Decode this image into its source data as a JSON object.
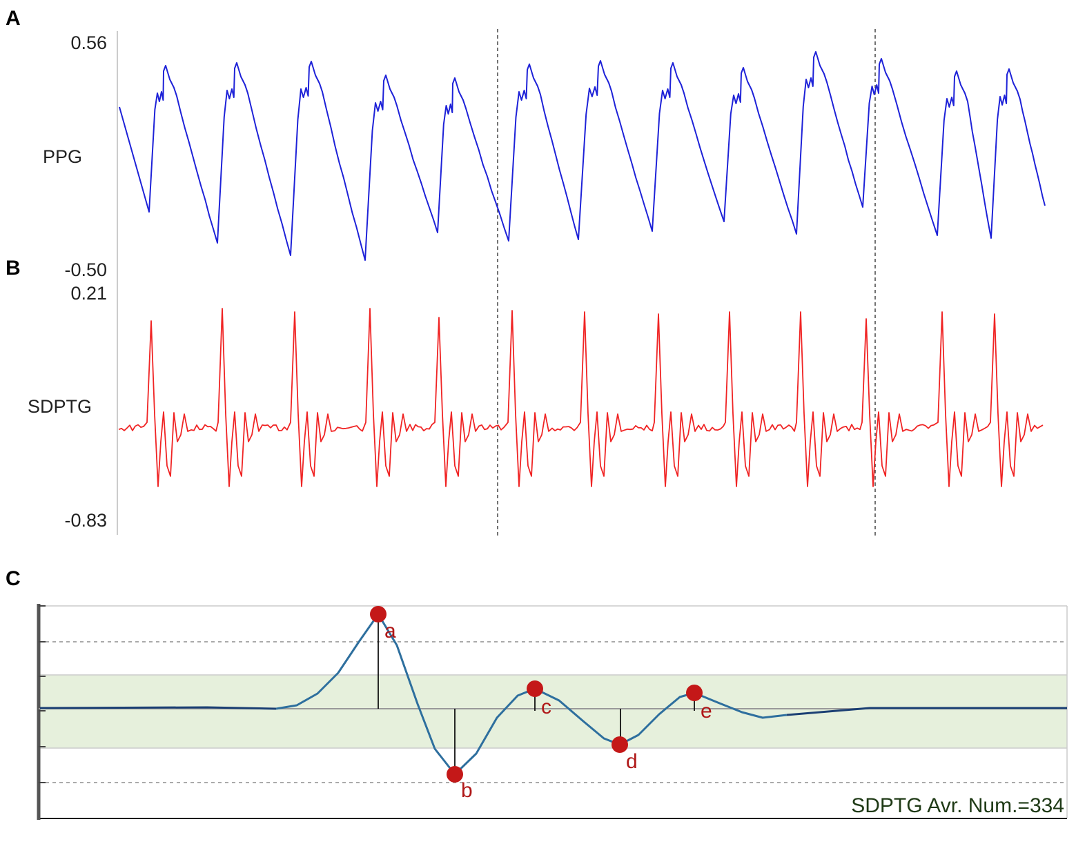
{
  "colors": {
    "ppg": "#1e22d8",
    "sdptg": "#f02424",
    "wave_c": "#2e6f9e",
    "points": "#c41818",
    "band": "#e6f0dc",
    "axis": "#bbbbbb",
    "marker_dash": "#444444"
  },
  "chart_data": [
    {
      "panel": "A",
      "type": "line",
      "series": [
        {
          "name": "PPG"
        }
      ],
      "ylabel": "PPG",
      "ytick_top": "0.56",
      "ytick_bottom": "-0.50",
      "ylim": [
        -0.5,
        0.56
      ],
      "beats": 13,
      "grid": false
    },
    {
      "panel": "B",
      "type": "line",
      "series": [
        {
          "name": "SDPTG"
        }
      ],
      "ylabel": "SDPTG",
      "ytick_top": "0.21",
      "ytick_bottom": "-0.83",
      "ylim": [
        -0.83,
        0.21
      ],
      "beats": 13,
      "grid": false
    },
    {
      "panel": "C",
      "type": "line",
      "series": [
        {
          "name": "SDPTG"
        }
      ],
      "points": [
        {
          "label": "a",
          "y": 1.0
        },
        {
          "label": "b",
          "y": -0.73
        },
        {
          "label": "c",
          "y": 0.22
        },
        {
          "label": "d",
          "y": -0.4
        },
        {
          "label": "e",
          "y": 0.17
        }
      ],
      "annotation": "SDPTG Avr. Num.=334",
      "grid": true
    }
  ]
}
